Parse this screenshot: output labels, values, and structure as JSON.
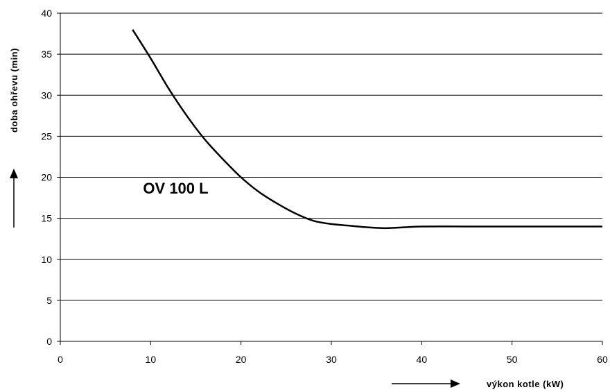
{
  "chart_data": {
    "type": "line",
    "xlabel": "výkon kotle (kW)",
    "ylabel": "doba ohřevu (min)",
    "xlim": [
      0,
      60
    ],
    "ylim": [
      0,
      40
    ],
    "x_ticks": [
      0,
      10,
      20,
      30,
      40,
      50,
      60
    ],
    "y_ticks": [
      0,
      5,
      10,
      15,
      20,
      25,
      30,
      35,
      40
    ],
    "grid": "horizontal",
    "annotations": [
      {
        "text": "OV 100 L",
        "x": 13,
        "y": 17
      }
    ],
    "series": [
      {
        "color": "#000000",
        "x": [
          8,
          10,
          12,
          14,
          16,
          18,
          20,
          22,
          24,
          26,
          28,
          30,
          32,
          34,
          36,
          38,
          40,
          45,
          50,
          55,
          60
        ],
        "y": [
          38,
          34.5,
          30.8,
          27.5,
          24.6,
          22.2,
          20.0,
          18.2,
          16.8,
          15.6,
          14.7,
          14.3,
          14.1,
          13.9,
          13.8,
          13.9,
          14.0,
          14.0,
          14.0,
          14.0,
          14.0
        ]
      }
    ]
  }
}
